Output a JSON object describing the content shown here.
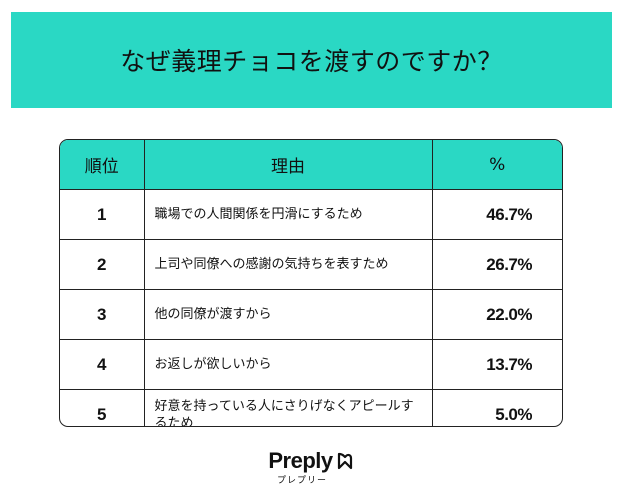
{
  "title": "なぜ義理チョコを渡すのですか？",
  "table": {
    "headers": {
      "rank": "順位",
      "reason": "理由",
      "percent": "%"
    },
    "rows": [
      {
        "rank": "1",
        "reason": "職場での人間関係を円滑にするため",
        "percent": "46.7%"
      },
      {
        "rank": "2",
        "reason": "上司や同僚への感謝の気持ちを表すため",
        "percent": "26.7%"
      },
      {
        "rank": "3",
        "reason": "他の同僚が渡すから",
        "percent": "22.0%"
      },
      {
        "rank": "4",
        "reason": "お返しが欲しいから",
        "percent": "13.7%"
      },
      {
        "rank": "5",
        "reason": "好意を持っている人にさりげなくアピールするため",
        "percent": "5.0%"
      }
    ]
  },
  "logo": {
    "name": "Preply",
    "sub": "プレプリー",
    "icon": "preply-heart-icon"
  },
  "colors": {
    "accent": "#2ad8c4",
    "text": "#111111",
    "border": "#222222"
  }
}
